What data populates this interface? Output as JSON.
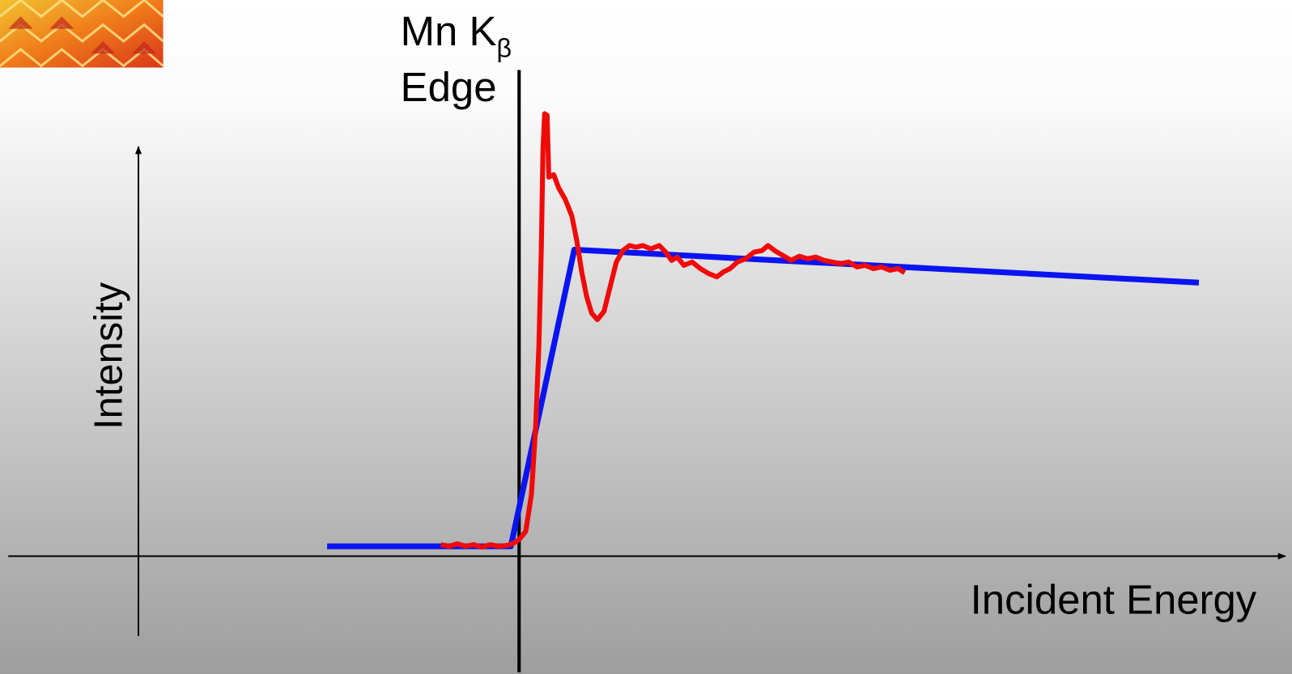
{
  "edge_label": {
    "text": "Mn K",
    "subscript": "β",
    "line2": "Edge"
  },
  "y_axis_label": "Intensity",
  "x_axis_label": "Incident Energy"
}
